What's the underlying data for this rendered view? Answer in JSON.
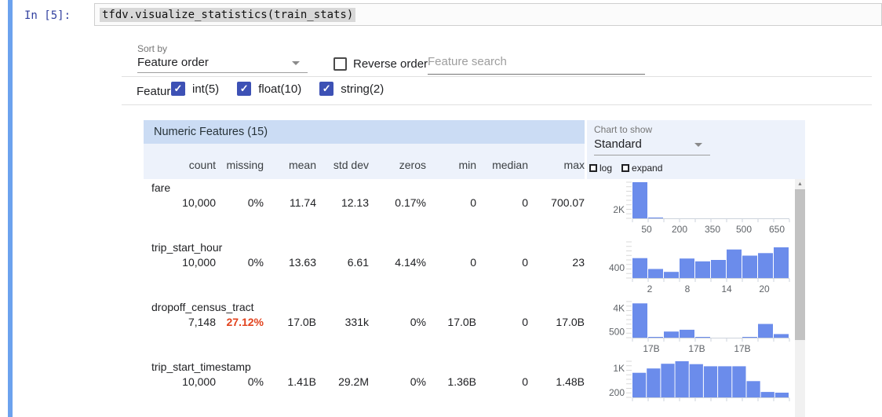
{
  "notebook": {
    "prompt": "In [5]:",
    "code": "tfdv.visualize_statistics(train_stats)"
  },
  "controls": {
    "sort_by_label": "Sort by",
    "sort_by_value": "Feature order",
    "reverse_order_label": "Reverse order",
    "search_placeholder": "Feature search",
    "features_label": "Features:",
    "feature_filters": [
      {
        "label": "int(5)",
        "checked": true
      },
      {
        "label": "float(10)",
        "checked": true
      },
      {
        "label": "string(2)",
        "checked": true
      }
    ]
  },
  "table": {
    "title": "Numeric Features (15)",
    "columns": [
      "count",
      "missing",
      "mean",
      "std dev",
      "zeros",
      "min",
      "median",
      "max"
    ],
    "rows": [
      {
        "name": "fare",
        "values": [
          "10,000",
          "0%",
          "11.74",
          "12.13",
          "0.17%",
          "0",
          "0",
          "700.07"
        ],
        "missing_alert": false
      },
      {
        "name": "trip_start_hour",
        "values": [
          "10,000",
          "0%",
          "13.63",
          "6.61",
          "4.14%",
          "0",
          "0",
          "23"
        ],
        "missing_alert": false
      },
      {
        "name": "dropoff_census_tract",
        "values": [
          "7,148",
          "27.12%",
          "17.0B",
          "331k",
          "0%",
          "17.0B",
          "0",
          "17.0B"
        ],
        "missing_alert": true
      },
      {
        "name": "trip_start_timestamp",
        "values": [
          "10,000",
          "0%",
          "1.41B",
          "29.2M",
          "0%",
          "1.36B",
          "0",
          "1.48B"
        ],
        "missing_alert": false
      }
    ]
  },
  "chart_panel": {
    "label": "Chart to show",
    "value": "Standard",
    "log_label": "log",
    "expand_label": "expand"
  },
  "chart_data": [
    {
      "feature": "fare",
      "type": "bar",
      "bars_rel": [
        1,
        0.02,
        0,
        0,
        0,
        0,
        0,
        0,
        0,
        0
      ],
      "x_ticks": [
        {
          "label": "50",
          "pos": 0.09
        },
        {
          "label": "200",
          "pos": 0.3
        },
        {
          "label": "350",
          "pos": 0.51
        },
        {
          "label": "500",
          "pos": 0.71
        },
        {
          "label": "650",
          "pos": 0.92
        }
      ],
      "y_ticks": [
        {
          "label": "2K",
          "pos": 0.24
        }
      ]
    },
    {
      "feature": "trip_start_hour",
      "type": "bar",
      "bars_rel": [
        0.55,
        0.25,
        0.17,
        0.54,
        0.46,
        0.5,
        0.79,
        0.62,
        0.69,
        0.85
      ],
      "x_ticks": [
        {
          "label": "2",
          "pos": 0.11
        },
        {
          "label": "8",
          "pos": 0.35
        },
        {
          "label": "14",
          "pos": 0.6
        },
        {
          "label": "20",
          "pos": 0.84
        }
      ],
      "y_ticks": [
        {
          "label": "400",
          "pos": 0.28
        }
      ]
    },
    {
      "feature": "dropoff_census_tract",
      "type": "bar",
      "bars_rel": [
        0.95,
        0.01,
        0.17,
        0.22,
        0.01,
        0,
        0,
        0.01,
        0.38,
        0.1
      ],
      "x_ticks": [
        {
          "label": "17B",
          "pos": 0.12
        },
        {
          "label": "17B",
          "pos": 0.41
        },
        {
          "label": "17B",
          "pos": 0.7
        }
      ],
      "y_ticks": [
        {
          "label": "4K",
          "pos": 0.82
        },
        {
          "label": "500",
          "pos": 0.16
        }
      ]
    },
    {
      "feature": "trip_start_timestamp",
      "type": "bar",
      "bars_rel": [
        0.68,
        0.8,
        0.93,
        1.0,
        0.92,
        0.86,
        0.86,
        0.86,
        0.45,
        0.15,
        0.13
      ],
      "x_ticks": [],
      "y_ticks": [
        {
          "label": "1K",
          "pos": 0.8
        },
        {
          "label": "200",
          "pos": 0.13
        }
      ]
    }
  ],
  "colors": {
    "cell_indicator": "#6ca2ee",
    "prompt_text": "#303f9f",
    "checkbox_accent": "#3d51b5",
    "table_title_bg": "#cbdcf4",
    "table_header_bg": "#edf2fb",
    "chart_panel_bg": "#edf2fb",
    "histogram_bar": "#6b8ceb",
    "missing_alert": "#e2431e",
    "axis_text": "#5f6368",
    "axis_line": "#cdd3dc",
    "ruler_tick": "#d8d8d8"
  }
}
